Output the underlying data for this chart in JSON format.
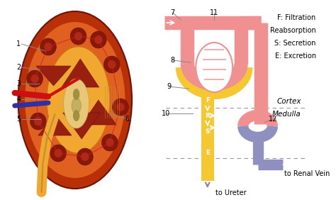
{
  "bg_color": "#ffffff",
  "legend_lines": [
    "F: Filtration",
    "R: Reabsorption",
    "S: Secretion",
    "E: Excretion"
  ],
  "cortex_label": "Cortex",
  "medulla_label": "Medulla",
  "to_ureter": "to Ureter",
  "to_renal_vein": "to Renal Vein",
  "pink_color": "#f09090",
  "yellow_color": "#f5c832",
  "yellow_dark": "#e8a000",
  "blue_gray_color": "#9090c0",
  "kidney_outer_color": "#b83008",
  "kidney_cortex_color": "#e06020",
  "kidney_medulla_color": "#f0a830",
  "kidney_pelvis_color": "#e8c878",
  "kidney_dark_color": "#901808",
  "red_vessel": "#cc1010",
  "blue_vessel": "#3030a0",
  "white": "#ffffff",
  "label_color": "#000000",
  "gray_line": "#888888"
}
